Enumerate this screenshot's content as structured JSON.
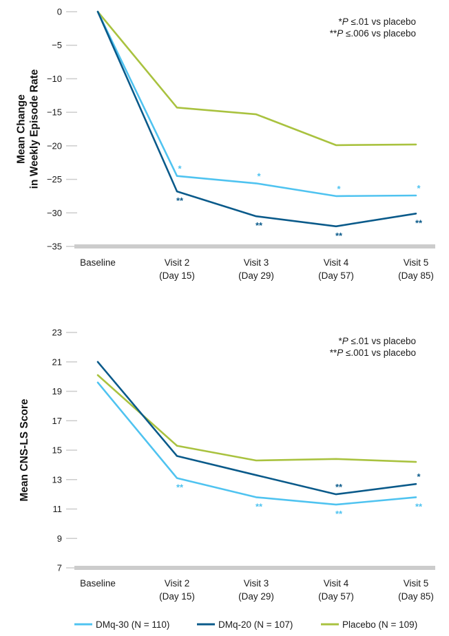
{
  "colors": {
    "DMq-30": "#4fc3f0",
    "DMq-20": "#0a5a8a",
    "Placebo": "#a9c23f",
    "axis": "#cccccc",
    "text": "#1a1a1a"
  },
  "legend": [
    {
      "series": "DMq-30",
      "label": "DMq-30 (N = 110)"
    },
    {
      "series": "DMq-20",
      "label": "DMq-20 (N = 107)"
    },
    {
      "series": "Placebo",
      "label": "Placebo (N = 109)"
    }
  ],
  "chart_data": [
    {
      "type": "line",
      "x": [
        "Baseline",
        "Visit 2 (Day 15)",
        "Visit 3 (Day 29)",
        "Visit 4 (Day 57)",
        "Visit 5 (Day 85)"
      ],
      "x_tick_lines": [
        [
          "Baseline"
        ],
        [
          "Visit 2",
          "(Day 15)"
        ],
        [
          "Visit 3",
          "(Day 29)"
        ],
        [
          "Visit 4",
          "(Day 57)"
        ],
        [
          "Visit 5",
          "(Day 85)"
        ]
      ],
      "ylabel_lines": [
        "Mean Change",
        "in Weekly Episode Rate"
      ],
      "ylim": [
        -35,
        0
      ],
      "yticks": [
        0,
        -5,
        -10,
        -15,
        -20,
        -25,
        -30,
        -35
      ],
      "ytick_labels": [
        "0",
        "−5",
        "−10",
        "−15",
        "−20",
        "−25",
        "−30",
        "−35"
      ],
      "grid": false,
      "series": [
        {
          "name": "DMq-30",
          "values": [
            0,
            -24.5,
            -25.6,
            -27.5,
            -27.4
          ],
          "significance": [
            "",
            "*",
            "*",
            "*",
            "*"
          ],
          "sig_position": "above"
        },
        {
          "name": "DMq-20",
          "values": [
            0,
            -26.8,
            -30.5,
            -32.0,
            -30.1
          ],
          "significance": [
            "",
            "**",
            "**",
            "**",
            "**"
          ],
          "sig_position": "below"
        },
        {
          "name": "Placebo",
          "values": [
            0,
            -14.3,
            -15.3,
            -19.9,
            -19.8
          ],
          "significance": [
            "",
            "",
            "",
            "",
            ""
          ],
          "sig_position": "above"
        }
      ],
      "notes": [
        {
          "stars": "*",
          "p": "P",
          "text": " ≤.01 vs placebo"
        },
        {
          "stars": "**",
          "p": "P",
          "text": " ≤.006 vs placebo"
        }
      ]
    },
    {
      "type": "line",
      "x": [
        "Baseline",
        "Visit 2 (Day 15)",
        "Visit 3 (Day 29)",
        "Visit 4 (Day 57)",
        "Visit 5 (Day 85)"
      ],
      "x_tick_lines": [
        [
          "Baseline"
        ],
        [
          "Visit 2",
          "(Day 15)"
        ],
        [
          "Visit 3",
          "(Day 29)"
        ],
        [
          "Visit 4",
          "(Day 57)"
        ],
        [
          "Visit 5",
          "(Day 85)"
        ]
      ],
      "ylabel_lines": [
        "Mean CNS-LS Score"
      ],
      "ylim": [
        7,
        23
      ],
      "yticks": [
        23,
        21,
        19,
        17,
        15,
        13,
        11,
        9,
        7
      ],
      "ytick_labels": [
        "23",
        "21",
        "19",
        "17",
        "15",
        "13",
        "11",
        "9",
        "7"
      ],
      "grid": false,
      "series": [
        {
          "name": "DMq-30",
          "values": [
            19.6,
            13.1,
            11.8,
            11.3,
            11.8
          ],
          "significance": [
            "",
            "**",
            "**",
            "**",
            "**"
          ],
          "sig_position": "below"
        },
        {
          "name": "DMq-20",
          "values": [
            21.0,
            14.6,
            13.3,
            12.0,
            12.7
          ],
          "significance": [
            "",
            "",
            "",
            "**",
            "*"
          ],
          "sig_position": "above"
        },
        {
          "name": "Placebo",
          "values": [
            20.1,
            15.3,
            14.3,
            14.4,
            14.2
          ],
          "significance": [
            "",
            "",
            "",
            "",
            ""
          ],
          "sig_position": "above"
        }
      ],
      "notes": [
        {
          "stars": "*",
          "p": "P",
          "text": " ≤.01 vs placebo"
        },
        {
          "stars": "**",
          "p": "P",
          "text": " ≤.001 vs placebo"
        }
      ]
    }
  ]
}
